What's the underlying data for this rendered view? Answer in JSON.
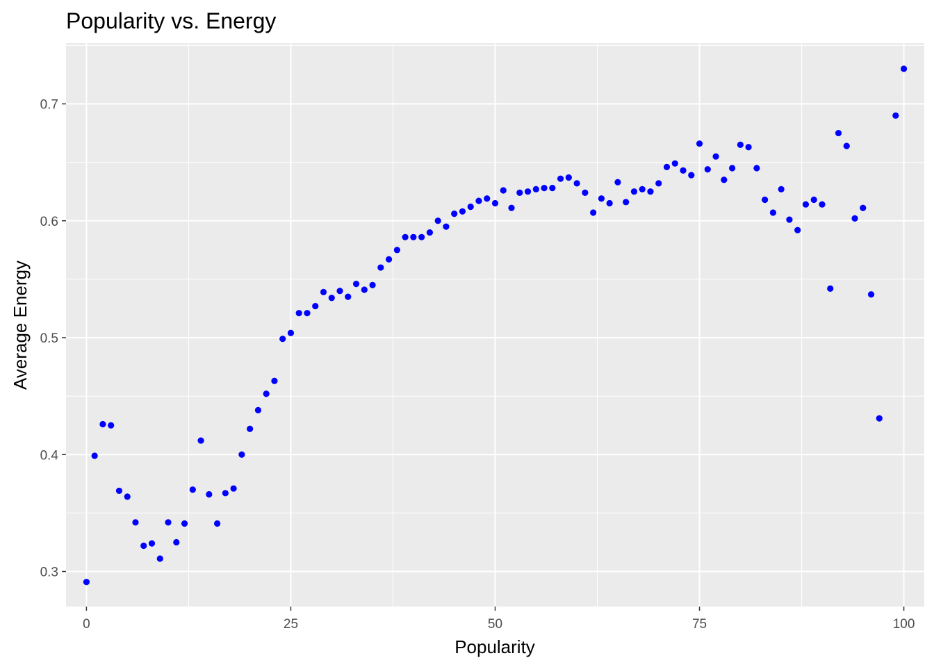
{
  "chart_data": {
    "type": "scatter",
    "title": "Popularity vs. Energy",
    "xlabel": "Popularity",
    "ylabel": "Average Energy",
    "xlim": [
      -2.5,
      102.5
    ],
    "ylim": [
      0.27,
      0.752
    ],
    "xticks": [
      0,
      25,
      50,
      75,
      100
    ],
    "xtick_labels": [
      "0",
      "25",
      "50",
      "75",
      "100"
    ],
    "yticks": [
      0.3,
      0.4,
      0.5,
      0.6,
      0.7
    ],
    "ytick_labels": [
      "0.3",
      "0.4",
      "0.5",
      "0.6",
      "0.7"
    ],
    "grid": true,
    "legend": "none",
    "panel_color": "#ebebeb",
    "grid_color": "#ffffff",
    "point_color": "#0000ff",
    "series": [
      {
        "x": [
          0,
          1,
          2,
          3,
          4,
          5,
          6,
          7,
          8,
          9,
          10,
          11,
          12,
          13,
          14,
          15,
          16,
          17,
          18,
          19,
          20,
          21,
          22,
          23,
          24,
          25,
          26,
          27,
          28,
          29,
          30,
          31,
          32,
          33,
          34,
          35,
          36,
          37,
          38,
          39,
          40,
          41,
          42,
          43,
          44,
          45,
          46,
          47,
          48,
          49,
          50,
          51,
          52,
          53,
          54,
          55,
          56,
          57,
          58,
          59,
          60,
          61,
          62,
          63,
          64,
          65,
          66,
          67,
          68,
          69,
          70,
          71,
          72,
          73,
          74,
          75,
          76,
          77,
          78,
          79,
          80,
          81,
          82,
          83,
          84,
          85,
          86,
          87,
          88,
          89,
          90,
          91,
          92,
          93,
          94,
          95,
          96,
          97,
          99,
          100
        ],
        "y": [
          0.291,
          0.399,
          0.426,
          0.425,
          0.369,
          0.364,
          0.342,
          0.322,
          0.324,
          0.311,
          0.342,
          0.325,
          0.341,
          0.37,
          0.412,
          0.366,
          0.341,
          0.367,
          0.371,
          0.4,
          0.422,
          0.438,
          0.452,
          0.463,
          0.499,
          0.504,
          0.521,
          0.521,
          0.527,
          0.539,
          0.534,
          0.54,
          0.535,
          0.546,
          0.541,
          0.545,
          0.56,
          0.567,
          0.575,
          0.586,
          0.586,
          0.586,
          0.59,
          0.6,
          0.595,
          0.606,
          0.608,
          0.612,
          0.617,
          0.619,
          0.615,
          0.626,
          0.611,
          0.624,
          0.625,
          0.627,
          0.628,
          0.628,
          0.636,
          0.637,
          0.632,
          0.624,
          0.607,
          0.619,
          0.615,
          0.633,
          0.616,
          0.625,
          0.627,
          0.625,
          0.632,
          0.646,
          0.649,
          0.643,
          0.639,
          0.666,
          0.644,
          0.655,
          0.635,
          0.645,
          0.665,
          0.663,
          0.645,
          0.618,
          0.607,
          0.627,
          0.601,
          0.592,
          0.614,
          0.618,
          0.614,
          0.542,
          0.675,
          0.664,
          0.602,
          0.611,
          0.537,
          0.431,
          0.69,
          0.73
        ]
      }
    ]
  }
}
